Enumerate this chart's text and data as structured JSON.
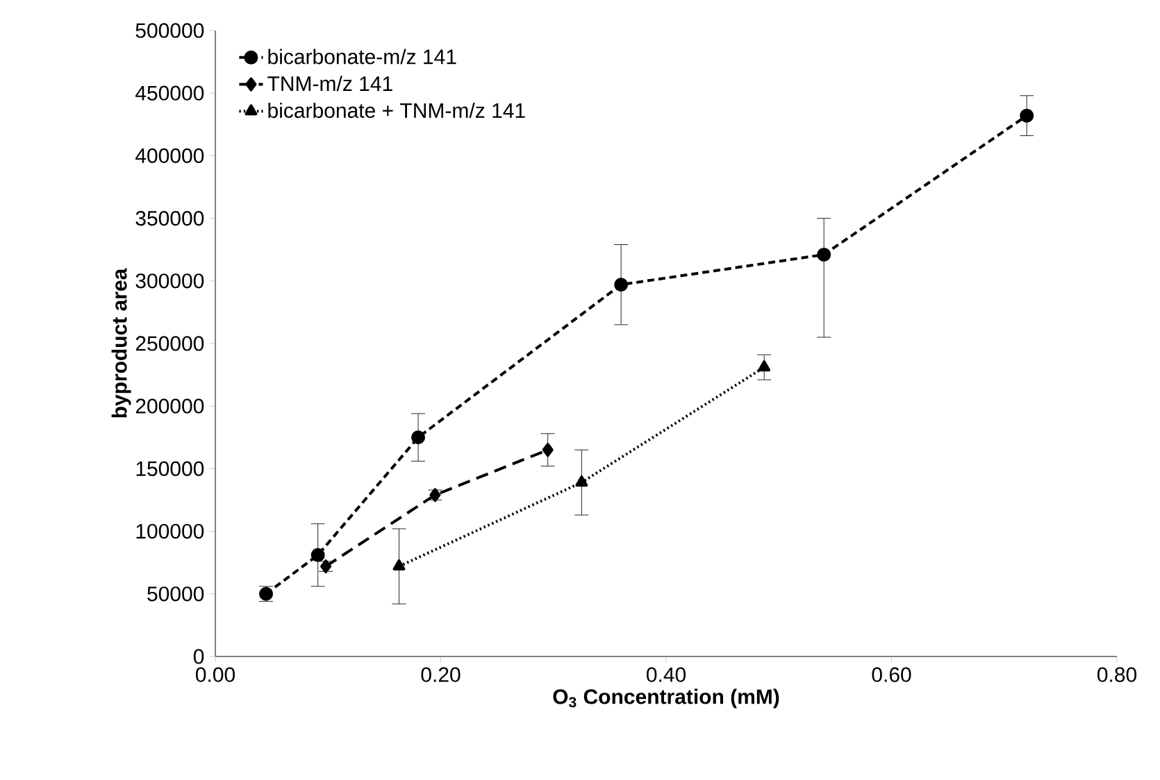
{
  "chart_data": {
    "type": "line",
    "xlabel": "**O$_{3}$ Concentration (mM)**",
    "ylabel": "**byproduct area**",
    "xlim": [
      0,
      0.8
    ],
    "xticks": [
      {
        "value": 0,
        "label": "0.00"
      },
      {
        "value": 0.2,
        "label": "0.20"
      },
      {
        "value": 0.4,
        "label": "0.40"
      },
      {
        "value": 0.6,
        "label": "0.60"
      },
      {
        "value": 0.8,
        "label": "0.80"
      }
    ],
    "ylim": [
      0,
      500000
    ],
    "yticks": [
      0,
      50000,
      100000,
      150000,
      200000,
      250000,
      300000,
      350000,
      400000,
      450000,
      500000
    ],
    "grid": false,
    "legend": "top left",
    "series": [
      {
        "name": "bicarbonate-m/z 141",
        "color": "#000000",
        "marker": "circle",
        "line_style": "dashed",
        "x": [
          0.045,
          0.091,
          0.18,
          0.36,
          0.54,
          0.72
        ],
        "values": [
          50000,
          81000,
          175000,
          297000,
          321000,
          432000
        ],
        "errors": [
          6000,
          25000,
          19000,
          32000,
          [
            255000,
            350000
          ],
          16000
        ]
      },
      {
        "name": "TNM-m/z 141",
        "color": "#000000",
        "marker": "diamond",
        "line_style": "dashed",
        "x": [
          0.098,
          0.195,
          0.295
        ],
        "values": [
          72000,
          129000,
          165000
        ],
        "errors": [
          4000,
          4000,
          13000
        ]
      },
      {
        "name": "bicarbonate + TNM-m/z 141",
        "color": "#000000",
        "marker": "triangle",
        "line_style": "dotted",
        "x": [
          0.163,
          0.325,
          0.487
        ],
        "values": [
          72000,
          139000,
          231000
        ],
        "errors": [
          30000,
          26000,
          10000
        ]
      }
    ]
  }
}
